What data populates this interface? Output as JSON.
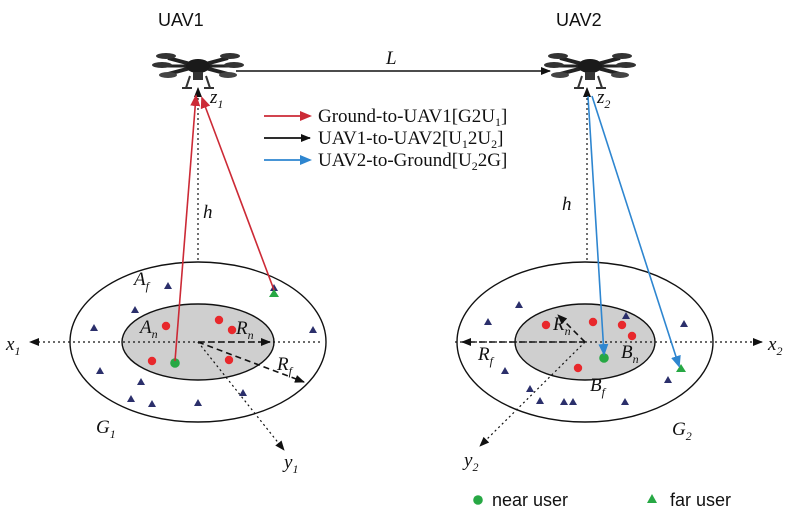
{
  "uav1": {
    "label": "UAV1",
    "axis_z": "z",
    "axis_z_sub": "1"
  },
  "uav2": {
    "label": "UAV2",
    "axis_z": "z",
    "axis_z_sub": "2"
  },
  "link_label": "L",
  "height_label": "h",
  "legend": [
    {
      "color": "#cc2a36",
      "text": "Ground-to-UAV1[G2U",
      "sub": "1",
      "tail": "]"
    },
    {
      "color": "#111111",
      "text": "UAV1-to-UAV2[U",
      "sub": "1",
      "mid": "2U",
      "sub2": "2",
      "tail": "]"
    },
    {
      "color": "#2e86d0",
      "text": "UAV2-to-Ground[U",
      "sub": "2",
      "mid": "2G]"
    }
  ],
  "ground1": {
    "area_f": "A",
    "area_f_sub": "f",
    "area_n": "A",
    "area_n_sub": "n",
    "radius_n": "R",
    "radius_n_sub": "n",
    "radius_f": "R",
    "radius_f_sub": "f",
    "axis_x": "x",
    "axis_x_sub": "1",
    "axis_y": "y",
    "axis_y_sub": "1",
    "region": "G",
    "region_sub": "1"
  },
  "ground2": {
    "area_f": "B",
    "area_f_sub": "f",
    "area_n": "B",
    "area_n_sub": "n",
    "radius_n": "R",
    "radius_n_sub": "n",
    "radius_f": "R",
    "radius_f_sub": "f",
    "axis_x": "x",
    "axis_x_sub": "2",
    "axis_y": "y",
    "axis_y_sub": "2",
    "region": "G",
    "region_sub": "2"
  },
  "key": {
    "near_user": "near user",
    "far_user": "far user",
    "near_color": "#27a844",
    "far_color": "#27a844"
  },
  "colors": {
    "red_link": "#cc2a36",
    "blue_link": "#2e86d0",
    "inner_fill": "#cfcfcf",
    "user_dot": "#e8282c",
    "user_tri": "#2b2f6b"
  }
}
